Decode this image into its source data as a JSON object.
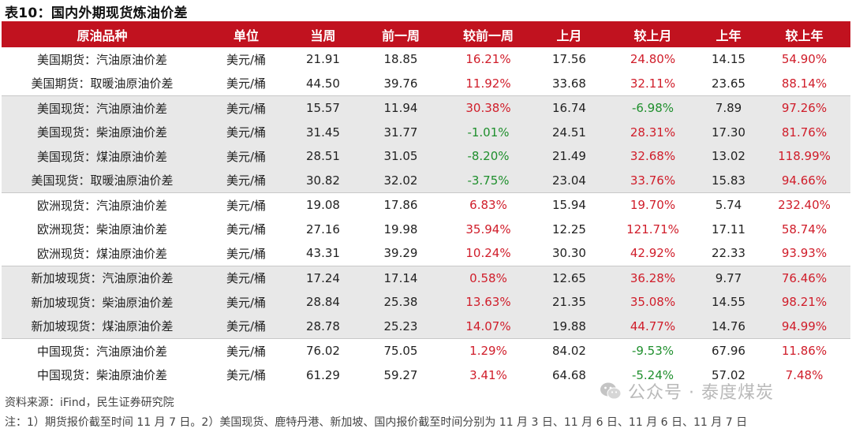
{
  "title": "表10：国内外期现货炼油价差",
  "headers": [
    "原油品种",
    "单位",
    "当周",
    "前一周",
    "较前一周",
    "上月",
    "较上月",
    "上年",
    "较上年"
  ],
  "rows": [
    {
      "product": "美国期货：汽油原油价差",
      "unit": "美元/桶",
      "cur": "21.91",
      "prev_week": "18.85",
      "chg_week": "16.21%",
      "last_month": "17.56",
      "chg_month": "24.80%",
      "last_year": "14.15",
      "chg_year": "54.90%"
    },
    {
      "product": "美国期货：取暖油原油价差",
      "unit": "美元/桶",
      "cur": "44.50",
      "prev_week": "39.76",
      "chg_week": "11.92%",
      "last_month": "33.68",
      "chg_month": "32.11%",
      "last_year": "23.65",
      "chg_year": "88.14%"
    },
    {
      "product": "美国现货：汽油原油价差",
      "unit": "美元/桶",
      "cur": "15.57",
      "prev_week": "11.94",
      "chg_week": "30.38%",
      "last_month": "16.74",
      "chg_month": "-6.98%",
      "last_year": "7.89",
      "chg_year": "97.26%"
    },
    {
      "product": "美国现货：柴油原油价差",
      "unit": "美元/桶",
      "cur": "31.45",
      "prev_week": "31.77",
      "chg_week": "-1.01%",
      "last_month": "24.51",
      "chg_month": "28.31%",
      "last_year": "17.30",
      "chg_year": "81.76%"
    },
    {
      "product": "美国现货：煤油原油价差",
      "unit": "美元/桶",
      "cur": "28.51",
      "prev_week": "31.05",
      "chg_week": "-8.20%",
      "last_month": "21.49",
      "chg_month": "32.68%",
      "last_year": "13.02",
      "chg_year": "118.99%"
    },
    {
      "product": "美国现货：取暖油原油价差",
      "unit": "美元/桶",
      "cur": "30.82",
      "prev_week": "32.02",
      "chg_week": "-3.75%",
      "last_month": "23.04",
      "chg_month": "33.76%",
      "last_year": "15.83",
      "chg_year": "94.66%"
    },
    {
      "product": "欧洲现货：汽油原油价差",
      "unit": "美元/桶",
      "cur": "19.08",
      "prev_week": "17.86",
      "chg_week": "6.83%",
      "last_month": "15.94",
      "chg_month": "19.70%",
      "last_year": "5.74",
      "chg_year": "232.40%"
    },
    {
      "product": "欧洲现货：柴油原油价差",
      "unit": "美元/桶",
      "cur": "27.16",
      "prev_week": "19.98",
      "chg_week": "35.94%",
      "last_month": "12.25",
      "chg_month": "121.71%",
      "last_year": "17.11",
      "chg_year": "58.74%"
    },
    {
      "product": "欧洲现货：煤油原油价差",
      "unit": "美元/桶",
      "cur": "43.31",
      "prev_week": "39.29",
      "chg_week": "10.24%",
      "last_month": "30.30",
      "chg_month": "42.92%",
      "last_year": "22.33",
      "chg_year": "93.93%"
    },
    {
      "product": "新加坡现货：汽油原油价差",
      "unit": "美元/桶",
      "cur": "17.24",
      "prev_week": "17.14",
      "chg_week": "0.58%",
      "last_month": "12.65",
      "chg_month": "36.28%",
      "last_year": "9.77",
      "chg_year": "76.46%"
    },
    {
      "product": "新加坡现货：柴油原油价差",
      "unit": "美元/桶",
      "cur": "28.84",
      "prev_week": "25.38",
      "chg_week": "13.63%",
      "last_month": "21.35",
      "chg_month": "35.08%",
      "last_year": "14.55",
      "chg_year": "98.21%"
    },
    {
      "product": "新加坡现货：煤油原油价差",
      "unit": "美元/桶",
      "cur": "28.78",
      "prev_week": "25.23",
      "chg_week": "14.07%",
      "last_month": "19.88",
      "chg_month": "44.77%",
      "last_year": "14.76",
      "chg_year": "94.99%"
    },
    {
      "product": "中国现货：汽油原油价差",
      "unit": "美元/桶",
      "cur": "76.02",
      "prev_week": "75.05",
      "chg_week": "1.29%",
      "last_month": "84.02",
      "chg_month": "-9.53%",
      "last_year": "67.96",
      "chg_year": "11.86%"
    },
    {
      "product": "中国现货：柴油原油价差",
      "unit": "美元/桶",
      "cur": "61.29",
      "prev_week": "59.27",
      "chg_week": "3.41%",
      "last_month": "64.68",
      "chg_month": "-5.24%",
      "last_year": "57.02",
      "chg_year": "7.48%"
    }
  ],
  "colors": {
    "header_bg": "#c1121f",
    "positive": "#d01d2a",
    "negative": "#1f8f2d",
    "band": "#e8e8e8"
  },
  "source": "资料来源：iFind，民生证券研究院",
  "note": "注：1）期货报价截至时间 11 月 7 日。2）美国现货、鹿特丹港、新加坡、国内报价截至时间分别为 11 月 3 日、11 月 6 日、11 月 6 日、11 月 7 日",
  "watermark": {
    "icon": "wechat-icon",
    "text": "公众号 · 泰度煤炭"
  }
}
